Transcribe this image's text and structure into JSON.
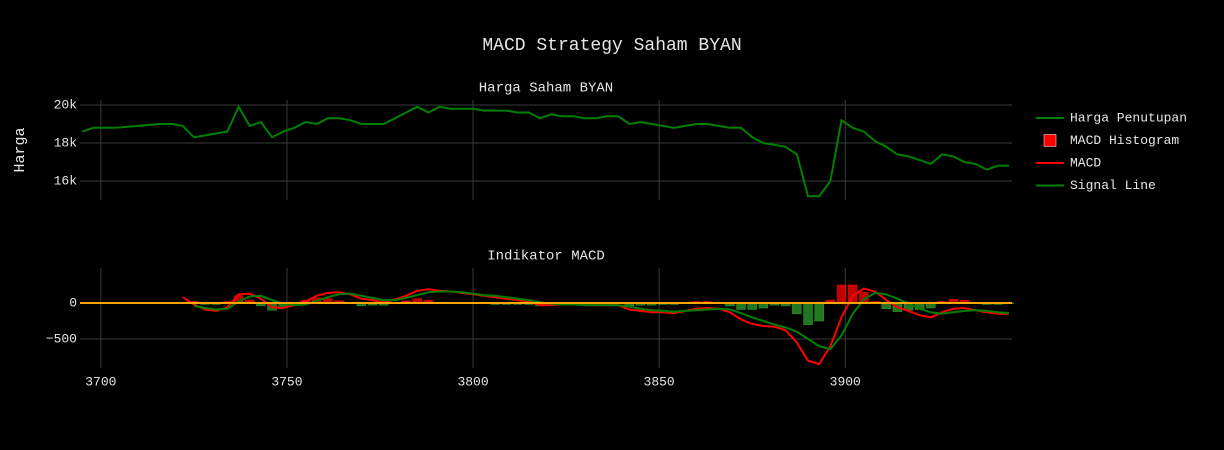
{
  "chart_data": {
    "type": "line",
    "title": "MACD Strategy Saham BYAN",
    "x": [
      3695,
      3698,
      3701,
      3704,
      3707,
      3710,
      3713,
      3716,
      3719,
      3722,
      3725,
      3728,
      3731,
      3734,
      3737,
      3740,
      3743,
      3746,
      3749,
      3752,
      3755,
      3758,
      3761,
      3764,
      3767,
      3770,
      3773,
      3776,
      3779,
      3782,
      3785,
      3788,
      3791,
      3794,
      3797,
      3800,
      3803,
      3806,
      3809,
      3812,
      3815,
      3818,
      3821,
      3824,
      3827,
      3830,
      3833,
      3836,
      3839,
      3842,
      3845,
      3848,
      3851,
      3854,
      3857,
      3860,
      3863,
      3866,
      3869,
      3872,
      3875,
      3878,
      3881,
      3884,
      3887,
      3890,
      3893,
      3896,
      3899,
      3902,
      3905,
      3908,
      3911,
      3914,
      3917,
      3920,
      3923,
      3926,
      3929,
      3932,
      3935,
      3938,
      3941,
      3944
    ],
    "xlim": [
      3694.4,
      3944.8
    ],
    "xticks": [
      3700,
      3750,
      3800,
      3850,
      3900
    ],
    "grid": true,
    "zero_line_color": "#ffa500",
    "panels": [
      {
        "title": "Harga Saham BYAN",
        "ylabel": "Harga",
        "ylim": [
          15000,
          20260
        ],
        "yticks": [
          {
            "value": 16000,
            "label": "16k"
          },
          {
            "value": 18000,
            "label": "18k"
          },
          {
            "value": 20000,
            "label": "20k"
          }
        ],
        "series": [
          {
            "name": "Harga Penutupan",
            "type": "line",
            "color": "#008000",
            "values": [
              18600,
              18800,
              18800,
              18800,
              18850,
              18900,
              18950,
              19000,
              19000,
              18900,
              18300,
              18400,
              18500,
              18600,
              19900,
              18900,
              19100,
              18300,
              18600,
              18800,
              19100,
              19000,
              19300,
              19300,
              19200,
              19000,
              19000,
              19000,
              19300,
              19600,
              19900,
              19600,
              19900,
              19800,
              19800,
              19800,
              19700,
              19700,
              19700,
              19600,
              19600,
              19300,
              19500,
              19400,
              19400,
              19300,
              19300,
              19400,
              19400,
              19000,
              19100,
              19000,
              18900,
              18800,
              18900,
              19000,
              19000,
              18900,
              18800,
              18800,
              18300,
              18000,
              17900,
              17800,
              17400,
              15200,
              15200,
              16000,
              19200,
              18800,
              18600,
              18100,
              17800,
              17400,
              17300,
              17100,
              16900,
              17400,
              17300,
              17000,
              16900,
              16600,
              16800,
              16800
            ]
          }
        ]
      },
      {
        "title": "Indikator MACD",
        "ylim": [
          -903,
          486
        ],
        "yticks": [
          {
            "value": -500,
            "label": "−500"
          },
          0
        ],
        "series": [
          {
            "name": "MACD Histogram",
            "type": "bar",
            "color": "#ff0000",
            "negative_color": "#2ca02c",
            "values": [
              null,
              null,
              null,
              null,
              null,
              null,
              null,
              null,
              null,
              null,
              20,
              -20,
              -20,
              20,
              100,
              40,
              -40,
              -100,
              -60,
              0,
              40,
              70,
              60,
              30,
              -10,
              -40,
              -30,
              -30,
              10,
              30,
              60,
              40,
              10,
              0,
              -10,
              -10,
              -10,
              -20,
              -20,
              -20,
              -20,
              -40,
              -20,
              0,
              0,
              0,
              0,
              0,
              0,
              -40,
              -30,
              -30,
              -20,
              -20,
              0,
              20,
              20,
              0,
              -40,
              -90,
              -90,
              -70,
              -30,
              -40,
              -150,
              -300,
              -250,
              40,
              250,
              250,
              150,
              20,
              -80,
              -120,
              -100,
              -90,
              -70,
              20,
              50,
              40,
              0,
              -20,
              -20,
              -10
            ]
          },
          {
            "name": "MACD",
            "type": "line",
            "color": "#ff0000",
            "values": [
              null,
              null,
              null,
              null,
              null,
              null,
              null,
              null,
              null,
              80,
              -20,
              -90,
              -110,
              -60,
              120,
              130,
              60,
              -60,
              -70,
              -30,
              20,
              100,
              140,
              150,
              120,
              60,
              40,
              10,
              50,
              100,
              170,
              190,
              170,
              160,
              140,
              120,
              100,
              80,
              60,
              40,
              20,
              -30,
              -30,
              -20,
              -20,
              -30,
              -30,
              -30,
              -30,
              -90,
              -110,
              -130,
              -130,
              -140,
              -110,
              -80,
              -70,
              -80,
              -130,
              -230,
              -290,
              -320,
              -330,
              -380,
              -550,
              -800,
              -850,
              -600,
              -200,
              100,
              200,
              160,
              40,
              -60,
              -110,
              -170,
              -200,
              -130,
              -80,
              -70,
              -100,
              -130,
              -150,
              -150
            ]
          },
          {
            "name": "Signal Line",
            "type": "line",
            "color": "#008000",
            "values": [
              null,
              null,
              null,
              null,
              null,
              null,
              null,
              null,
              null,
              null,
              -40,
              -70,
              -90,
              -80,
              20,
              90,
              100,
              40,
              -10,
              -30,
              -20,
              30,
              80,
              120,
              130,
              100,
              70,
              40,
              40,
              70,
              110,
              150,
              160,
              160,
              150,
              130,
              110,
              100,
              80,
              60,
              40,
              10,
              -10,
              -20,
              -20,
              -30,
              -30,
              -30,
              -30,
              -50,
              -80,
              -100,
              -110,
              -120,
              -110,
              -100,
              -90,
              -80,
              -90,
              -140,
              -200,
              -250,
              -300,
              -340,
              -400,
              -500,
              -600,
              -640,
              -450,
              -150,
              50,
              140,
              120,
              60,
              -10,
              -80,
              -130,
              -150,
              -130,
              -110,
              -100,
              -110,
              -130,
              -140
            ]
          }
        ]
      }
    ]
  }
}
